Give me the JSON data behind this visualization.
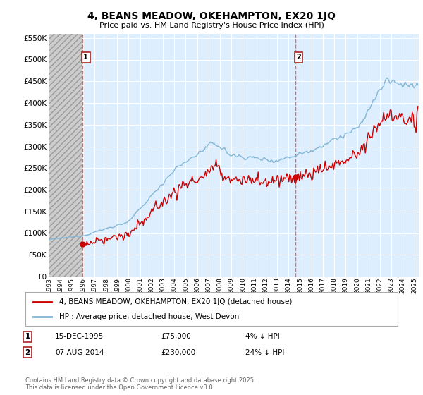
{
  "title": "4, BEANS MEADOW, OKEHAMPTON, EX20 1JQ",
  "subtitle": "Price paid vs. HM Land Registry's House Price Index (HPI)",
  "legend_line1": "4, BEANS MEADOW, OKEHAMPTON, EX20 1JQ (detached house)",
  "legend_line2": "HPI: Average price, detached house, West Devon",
  "annotation1_date": "15-DEC-1995",
  "annotation1_price": "£75,000",
  "annotation1_hpi": "4% ↓ HPI",
  "annotation2_date": "07-AUG-2014",
  "annotation2_price": "£230,000",
  "annotation2_hpi": "24% ↓ HPI",
  "footer": "Contains HM Land Registry data © Crown copyright and database right 2025.\nThis data is licensed under the Open Government Licence v3.0.",
  "price_color": "#cc0000",
  "hpi_color": "#7eb4d4",
  "background_color": "#ffffff",
  "plot_bg_color": "#ddeeff",
  "grid_color": "#ffffff",
  "annotation_vline_color": "#dd4444",
  "hatch_color": "#bbbbbb",
  "ylim": [
    0,
    560000
  ],
  "yticks": [
    0,
    50000,
    100000,
    150000,
    200000,
    250000,
    300000,
    350000,
    400000,
    450000,
    500000,
    550000
  ],
  "t1": 1995.958,
  "p1": 75000,
  "t2": 2014.583,
  "p2": 230000,
  "xmin": 1993,
  "xmax": 2025.4
}
